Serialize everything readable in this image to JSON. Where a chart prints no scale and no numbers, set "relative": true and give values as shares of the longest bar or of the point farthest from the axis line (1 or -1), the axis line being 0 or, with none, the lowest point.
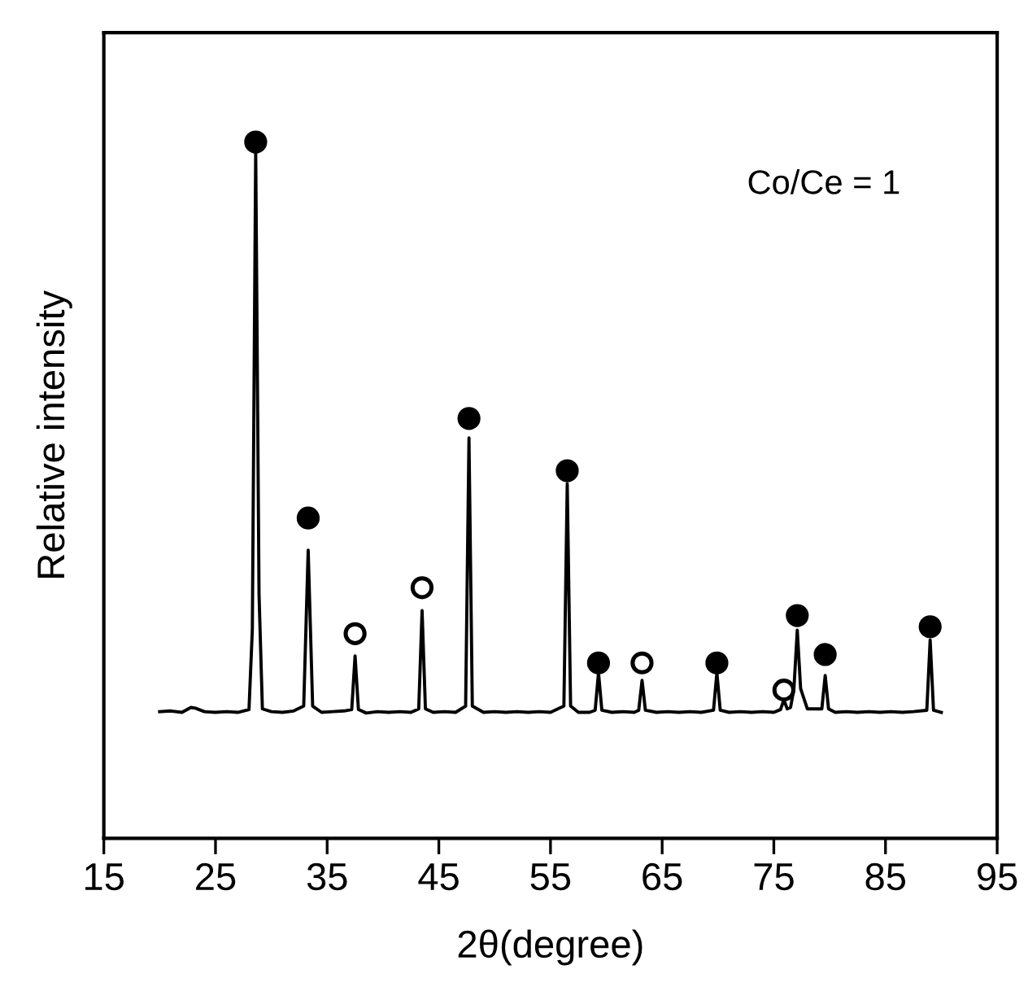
{
  "chart_data": {
    "type": "line",
    "relative": true,
    "xlabel": "2θ(degree)",
    "ylabel": "Relative intensity",
    "xlim": [
      15,
      95
    ],
    "xticks": [
      15,
      25,
      35,
      45,
      55,
      65,
      75,
      85,
      95
    ],
    "grid": false,
    "legend": false,
    "annotations": [
      "Co/Ce = 1"
    ],
    "series": [
      {
        "color": "#000000",
        "marker": "none",
        "x": [
          20,
          21,
          22,
          22.8,
          23.2,
          24,
          25,
          26,
          27,
          28,
          28.3,
          28.6,
          28.9,
          29.2,
          30,
          31,
          32,
          32.9,
          33.3,
          33.7,
          34.5,
          35.5,
          36.5,
          37.2,
          37.5,
          37.8,
          38.5,
          39.5,
          40.5,
          41.5,
          42.5,
          43.2,
          43.5,
          43.8,
          44.5,
          45.5,
          46.5,
          47.4,
          47.7,
          48.0,
          49,
          50,
          51,
          52,
          53,
          54,
          55,
          56.2,
          56.5,
          56.8,
          57.5,
          58.5,
          59.0,
          59.3,
          59.6,
          60.5,
          61.5,
          62.5,
          62.9,
          63.2,
          63.5,
          64.5,
          65.5,
          66.5,
          67.5,
          68.5,
          69.6,
          69.9,
          70.2,
          71,
          72,
          73,
          74,
          75,
          75.6,
          75.9,
          76.2,
          76.5,
          76.8,
          77.1,
          77.4,
          78,
          79.3,
          79.6,
          79.9,
          80.5,
          81.5,
          82.5,
          83.5,
          84.5,
          85.5,
          86.5,
          87.5,
          88.7,
          89.0,
          89.3,
          90
        ],
        "values": [
          0.182,
          0.183,
          0.181,
          0.188,
          0.187,
          0.182,
          0.181,
          0.182,
          0.181,
          0.185,
          0.3,
          0.988,
          0.35,
          0.186,
          0.182,
          0.181,
          0.183,
          0.19,
          0.414,
          0.19,
          0.181,
          0.182,
          0.183,
          0.185,
          0.262,
          0.185,
          0.18,
          0.182,
          0.181,
          0.182,
          0.181,
          0.186,
          0.327,
          0.186,
          0.181,
          0.182,
          0.181,
          0.19,
          0.575,
          0.19,
          0.181,
          0.182,
          0.181,
          0.182,
          0.181,
          0.182,
          0.181,
          0.19,
          0.509,
          0.19,
          0.181,
          0.181,
          0.184,
          0.238,
          0.184,
          0.181,
          0.182,
          0.181,
          0.184,
          0.227,
          0.184,
          0.181,
          0.182,
          0.181,
          0.182,
          0.181,
          0.184,
          0.238,
          0.184,
          0.181,
          0.182,
          0.181,
          0.182,
          0.181,
          0.185,
          0.199,
          0.186,
          0.188,
          0.215,
          0.299,
          0.215,
          0.186,
          0.186,
          0.234,
          0.186,
          0.181,
          0.182,
          0.181,
          0.182,
          0.181,
          0.182,
          0.181,
          0.182,
          0.184,
          0.285,
          0.184,
          0.181
        ]
      },
      {
        "type": "scatter",
        "color": "#000000",
        "marker": "circle",
        "x": [
          28.6,
          33.3,
          47.7,
          56.5,
          59.3,
          69.9,
          77.1,
          79.6,
          89.0
        ],
        "values": [
          1.0,
          0.46,
          0.603,
          0.528,
          0.252,
          0.252,
          0.32,
          0.264,
          0.304
        ]
      },
      {
        "type": "scatter",
        "color": "#ffffff",
        "marker": "circle",
        "x": [
          37.5,
          43.5,
          63.2,
          75.9
        ],
        "values": [
          0.294,
          0.36,
          0.252,
          0.213
        ]
      }
    ]
  }
}
